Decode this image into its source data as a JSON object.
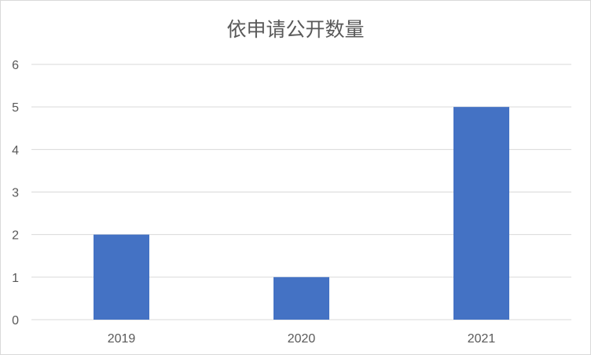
{
  "chart_data": {
    "type": "bar",
    "title": "依申请公开数量",
    "categories": [
      "2019",
      "2020",
      "2021"
    ],
    "values": [
      2,
      1,
      5
    ],
    "ylim": [
      0,
      6
    ],
    "yticks": [
      "0",
      "1",
      "2",
      "3",
      "4",
      "5",
      "6"
    ],
    "grid": true,
    "legend": "none",
    "bar_color": "#4472c4",
    "grid_color": "#d9d9d9"
  }
}
